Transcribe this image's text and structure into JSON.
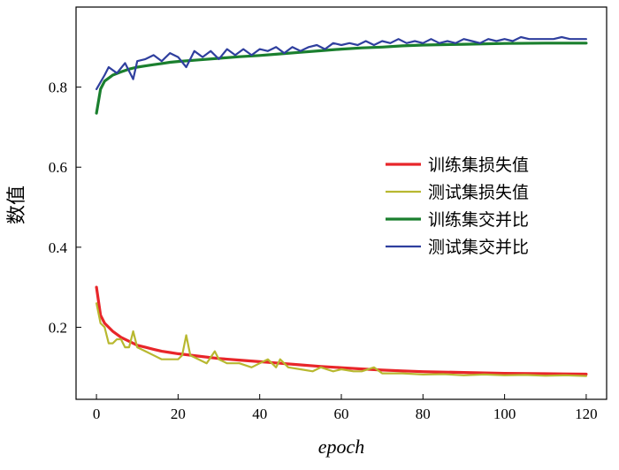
{
  "chart_data": {
    "type": "line",
    "title": "",
    "xlabel": "epoch",
    "ylabel": "数值",
    "xlim": [
      -5,
      125
    ],
    "ylim": [
      0.02,
      1.0
    ],
    "xticks": [
      0,
      20,
      40,
      60,
      80,
      100,
      120
    ],
    "yticks": [
      0.2,
      0.4,
      0.6,
      0.8
    ],
    "xtick_labels": [
      "0",
      "20",
      "40",
      "60",
      "80",
      "100",
      "120"
    ],
    "ytick_labels": [
      "0.2",
      "0.4",
      "0.6",
      "0.8"
    ],
    "grid": false,
    "legend_position": "center-right",
    "series": [
      {
        "name": "训练集损失值",
        "color": "#e8262a",
        "x": [
          0,
          1,
          2,
          4,
          6,
          8,
          10,
          12,
          14,
          16,
          18,
          20,
          25,
          30,
          35,
          40,
          45,
          50,
          55,
          60,
          65,
          70,
          75,
          80,
          90,
          100,
          110,
          120
        ],
        "y": [
          0.3,
          0.23,
          0.21,
          0.19,
          0.175,
          0.165,
          0.155,
          0.15,
          0.145,
          0.14,
          0.137,
          0.134,
          0.128,
          0.122,
          0.118,
          0.114,
          0.11,
          0.106,
          0.102,
          0.099,
          0.096,
          0.093,
          0.091,
          0.089,
          0.087,
          0.085,
          0.084,
          0.083
        ]
      },
      {
        "name": "测试集损失值",
        "color": "#b8b830",
        "x": [
          0,
          1,
          2,
          3,
          4,
          5,
          6,
          7,
          8,
          9,
          10,
          12,
          14,
          16,
          18,
          20,
          21,
          22,
          23,
          25,
          27,
          29,
          30,
          32,
          35,
          38,
          40,
          42,
          44,
          45,
          47,
          50,
          53,
          55,
          58,
          60,
          63,
          65,
          68,
          70,
          75,
          80,
          85,
          90,
          95,
          100,
          105,
          110,
          115,
          120
        ],
        "y": [
          0.26,
          0.21,
          0.2,
          0.16,
          0.16,
          0.17,
          0.17,
          0.15,
          0.15,
          0.19,
          0.15,
          0.14,
          0.13,
          0.12,
          0.12,
          0.12,
          0.13,
          0.18,
          0.13,
          0.12,
          0.11,
          0.14,
          0.12,
          0.11,
          0.11,
          0.1,
          0.11,
          0.12,
          0.1,
          0.12,
          0.1,
          0.095,
          0.09,
          0.1,
          0.09,
          0.095,
          0.09,
          0.09,
          0.1,
          0.085,
          0.085,
          0.082,
          0.083,
          0.08,
          0.082,
          0.08,
          0.081,
          0.079,
          0.08,
          0.078
        ]
      },
      {
        "name": "训练集交并比",
        "color": "#1a7f2e",
        "x": [
          0,
          1,
          2,
          4,
          6,
          8,
          10,
          12,
          14,
          16,
          18,
          20,
          25,
          30,
          35,
          40,
          45,
          50,
          55,
          60,
          65,
          70,
          75,
          80,
          90,
          100,
          110,
          120
        ],
        "y": [
          0.735,
          0.795,
          0.815,
          0.83,
          0.838,
          0.845,
          0.85,
          0.853,
          0.856,
          0.859,
          0.862,
          0.864,
          0.868,
          0.872,
          0.876,
          0.879,
          0.883,
          0.887,
          0.891,
          0.895,
          0.898,
          0.9,
          0.903,
          0.905,
          0.907,
          0.909,
          0.91,
          0.91
        ]
      },
      {
        "name": "测试集交并比",
        "color": "#2f3f9e",
        "x": [
          0,
          2,
          3,
          5,
          7,
          9,
          10,
          12,
          14,
          16,
          18,
          20,
          22,
          24,
          26,
          28,
          30,
          32,
          34,
          36,
          38,
          40,
          42,
          44,
          46,
          48,
          50,
          52,
          54,
          56,
          58,
          60,
          62,
          64,
          66,
          68,
          70,
          72,
          74,
          76,
          78,
          80,
          82,
          84,
          86,
          88,
          90,
          92,
          94,
          96,
          98,
          100,
          102,
          104,
          106,
          108,
          110,
          112,
          114,
          116,
          118,
          120
        ],
        "y": [
          0.795,
          0.83,
          0.85,
          0.835,
          0.86,
          0.82,
          0.865,
          0.87,
          0.88,
          0.865,
          0.885,
          0.875,
          0.85,
          0.89,
          0.875,
          0.89,
          0.87,
          0.895,
          0.88,
          0.895,
          0.88,
          0.895,
          0.89,
          0.9,
          0.885,
          0.9,
          0.89,
          0.9,
          0.905,
          0.895,
          0.91,
          0.905,
          0.91,
          0.905,
          0.915,
          0.905,
          0.915,
          0.91,
          0.92,
          0.91,
          0.915,
          0.91,
          0.92,
          0.91,
          0.915,
          0.91,
          0.92,
          0.915,
          0.91,
          0.92,
          0.915,
          0.92,
          0.915,
          0.925,
          0.92,
          0.92,
          0.92,
          0.92,
          0.925,
          0.92,
          0.92,
          0.92
        ]
      }
    ]
  }
}
